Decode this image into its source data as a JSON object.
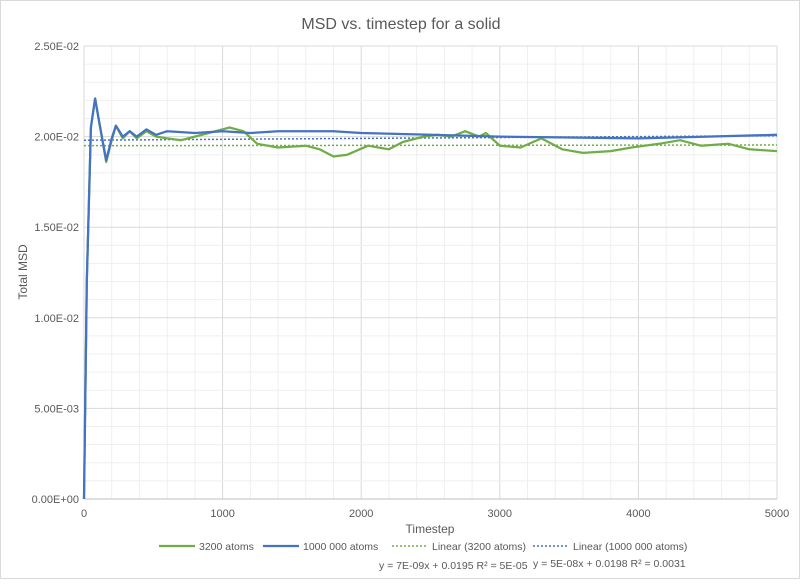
{
  "chart_data": {
    "type": "line",
    "title": "MSD vs. timestep for a solid",
    "xlabel": "Timestep",
    "ylabel": "Total MSD",
    "xlim": [
      0,
      5000
    ],
    "ylim": [
      0,
      0.025
    ],
    "x_ticks": [
      "0",
      "1000",
      "2000",
      "3000",
      "4000",
      "5000"
    ],
    "y_ticks": [
      "0.00E+00",
      "5.00E-03",
      "1.00E-02",
      "1.50E-02",
      "2.00E-02",
      "2.50E-02"
    ],
    "grid": "major and minor",
    "legend_position": "bottom",
    "series": [
      {
        "name": "3200 atoms",
        "color": "#70ad47",
        "points": [
          [
            0,
            0
          ],
          [
            20,
            0.012
          ],
          [
            50,
            0.0205
          ],
          [
            80,
            0.0221
          ],
          [
            110,
            0.0208
          ],
          [
            160,
            0.0186
          ],
          [
            200,
            0.0198
          ],
          [
            230,
            0.0206
          ],
          [
            280,
            0.0199
          ],
          [
            330,
            0.0203
          ],
          [
            380,
            0.0199
          ],
          [
            450,
            0.0203
          ],
          [
            520,
            0.02
          ],
          [
            600,
            0.0199
          ],
          [
            700,
            0.0198
          ],
          [
            800,
            0.02
          ],
          [
            900,
            0.0202
          ],
          [
            1000,
            0.0204
          ],
          [
            1050,
            0.0205
          ],
          [
            1150,
            0.0203
          ],
          [
            1250,
            0.0196
          ],
          [
            1400,
            0.0194
          ],
          [
            1600,
            0.0195
          ],
          [
            1700,
            0.0193
          ],
          [
            1800,
            0.0189
          ],
          [
            1900,
            0.019
          ],
          [
            2050,
            0.0195
          ],
          [
            2200,
            0.0193
          ],
          [
            2300,
            0.0197
          ],
          [
            2450,
            0.02
          ],
          [
            2550,
            0.0201
          ],
          [
            2650,
            0.02
          ],
          [
            2750,
            0.0203
          ],
          [
            2850,
            0.02
          ],
          [
            2900,
            0.0202
          ],
          [
            3000,
            0.0195
          ],
          [
            3150,
            0.0194
          ],
          [
            3300,
            0.0199
          ],
          [
            3450,
            0.0193
          ],
          [
            3600,
            0.0191
          ],
          [
            3800,
            0.0192
          ],
          [
            3950,
            0.0194
          ],
          [
            4150,
            0.0196
          ],
          [
            4300,
            0.0198
          ],
          [
            4450,
            0.0195
          ],
          [
            4650,
            0.0196
          ],
          [
            4800,
            0.0193
          ],
          [
            5000,
            0.0192
          ]
        ]
      },
      {
        "name": "1000 000 atoms",
        "color": "#4472c4",
        "points": [
          [
            0,
            0
          ],
          [
            20,
            0.012
          ],
          [
            50,
            0.0205
          ],
          [
            80,
            0.0221
          ],
          [
            110,
            0.0208
          ],
          [
            160,
            0.0187
          ],
          [
            200,
            0.0199
          ],
          [
            230,
            0.0206
          ],
          [
            280,
            0.02
          ],
          [
            330,
            0.0203
          ],
          [
            380,
            0.02
          ],
          [
            450,
            0.0204
          ],
          [
            520,
            0.0201
          ],
          [
            600,
            0.0203
          ],
          [
            800,
            0.0202
          ],
          [
            1000,
            0.0203
          ],
          [
            1200,
            0.0202
          ],
          [
            1400,
            0.0203
          ],
          [
            1600,
            0.0203
          ],
          [
            1800,
            0.0203
          ],
          [
            2000,
            0.0202
          ],
          [
            2500,
            0.0201
          ],
          [
            3000,
            0.02
          ],
          [
            3500,
            0.01995
          ],
          [
            4000,
            0.0199
          ],
          [
            4500,
            0.02
          ],
          [
            5000,
            0.0201
          ]
        ]
      }
    ],
    "trendlines": [
      {
        "name": "Linear (3200 atoms)",
        "color": "#70ad47",
        "slope": 7e-09,
        "intercept": 0.0195,
        "equation": "y = 7E-09x + 0.0195  R² = 5E-05"
      },
      {
        "name": "Linear (1000 000 atoms)",
        "color": "#4472c4",
        "slope": 5e-08,
        "intercept": 0.0198,
        "equation": "y = 5E-08x + 0.0198  R² = 0.0031"
      }
    ]
  }
}
